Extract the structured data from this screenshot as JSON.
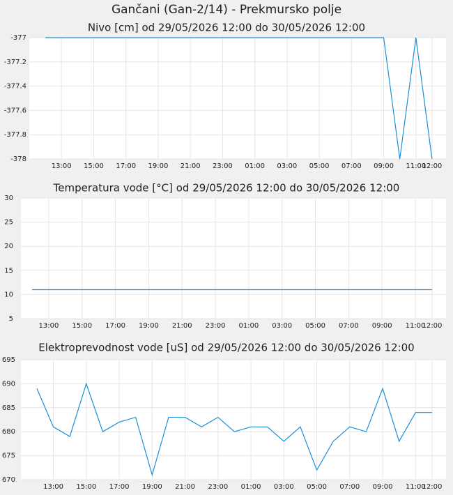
{
  "title": "Gančani (Gan-2/14) - Prekmursko polje",
  "chart_data": [
    {
      "type": "line",
      "title": "Nivo [cm] od 29/05/2026 12:00 do 30/05/2026 12:00",
      "color": "#1a8fd6",
      "grid": true,
      "x": [
        12,
        13,
        14,
        15,
        16,
        17,
        18,
        19,
        20,
        21,
        22,
        23,
        24,
        25,
        26,
        27,
        28,
        29,
        30,
        31,
        32,
        33,
        34,
        35,
        36
      ],
      "values": [
        -377,
        -377,
        -377,
        -377,
        -377,
        -377,
        -377,
        -377,
        -377,
        -377,
        -377,
        -377,
        -377,
        -377,
        -377,
        -377,
        -377,
        -377,
        -377,
        -377,
        -377,
        -377,
        -378,
        -377,
        -378
      ],
      "xlim": [
        11,
        36.87
      ],
      "ylim": [
        -378,
        -377
      ],
      "yticks": [
        -377,
        -377.2,
        -377.4,
        -377.6,
        -377.8,
        -378
      ],
      "xticks": [
        {
          "value": 13,
          "label": "13:00"
        },
        {
          "value": 15,
          "label": "15:00"
        },
        {
          "value": 17,
          "label": "17:00"
        },
        {
          "value": 19,
          "label": "19:00"
        },
        {
          "value": 21,
          "label": "21:00"
        },
        {
          "value": 23,
          "label": "23:00"
        },
        {
          "value": 25,
          "label": "01:00"
        },
        {
          "value": 27,
          "label": "03:00"
        },
        {
          "value": 29,
          "label": "05:00"
        },
        {
          "value": 31,
          "label": "07:00"
        },
        {
          "value": 33,
          "label": "09:00"
        },
        {
          "value": 35,
          "label": "11:00"
        },
        {
          "value": 36,
          "label": "12:00"
        }
      ]
    },
    {
      "type": "line",
      "title": "Temperatura vode [°C] od 29/05/2026 12:00 do 30/05/2026 12:00",
      "color": "#1a8fd6",
      "grid": true,
      "x": [
        12,
        13,
        14,
        15,
        16,
        17,
        18,
        19,
        20,
        21,
        22,
        23,
        24,
        25,
        26,
        27,
        28,
        29,
        30,
        31,
        32,
        33,
        34,
        35,
        36
      ],
      "values": [
        11,
        11,
        11,
        11,
        11,
        11,
        11,
        11,
        11,
        11,
        11,
        11,
        11,
        11,
        11,
        11,
        11,
        11,
        11,
        11,
        11,
        11,
        11,
        11,
        11
      ],
      "xlim": [
        11.33,
        36.84
      ],
      "ylim": [
        5,
        30
      ],
      "yticks": [
        30,
        25,
        20,
        15,
        10,
        5
      ],
      "xticks": [
        {
          "value": 13,
          "label": "13:00"
        },
        {
          "value": 15,
          "label": "15:00"
        },
        {
          "value": 17,
          "label": "17:00"
        },
        {
          "value": 19,
          "label": "19:00"
        },
        {
          "value": 21,
          "label": "21:00"
        },
        {
          "value": 23,
          "label": "23:00"
        },
        {
          "value": 25,
          "label": "01:00"
        },
        {
          "value": 27,
          "label": "03:00"
        },
        {
          "value": 29,
          "label": "05:00"
        },
        {
          "value": 31,
          "label": "07:00"
        },
        {
          "value": 33,
          "label": "09:00"
        },
        {
          "value": 35,
          "label": "11:00"
        },
        {
          "value": 36,
          "label": "12:00"
        }
      ]
    },
    {
      "type": "line",
      "title": "Elektroprevodnost vode [uS] od 29/05/2026 12:00 do 30/05/2026 12:00",
      "color": "#1a8fd6",
      "grid": true,
      "x": [
        12,
        13,
        14,
        15,
        16,
        17,
        18,
        19,
        20,
        21,
        22,
        23,
        24,
        25,
        26,
        27,
        28,
        29,
        30,
        31,
        32,
        33,
        34,
        35,
        36
      ],
      "values": [
        689,
        681,
        679,
        690,
        680,
        682,
        683,
        671,
        683,
        683,
        681,
        683,
        680,
        681,
        681,
        678,
        681,
        672,
        678,
        681,
        680,
        689,
        678,
        684,
        684
      ],
      "xlim": [
        11.03,
        36.85
      ],
      "ylim": [
        670,
        695
      ],
      "yticks": [
        695,
        690,
        685,
        680,
        675,
        670
      ],
      "xticks": [
        {
          "value": 13,
          "label": "13:00"
        },
        {
          "value": 15,
          "label": "15:00"
        },
        {
          "value": 17,
          "label": "17:00"
        },
        {
          "value": 19,
          "label": "19:00"
        },
        {
          "value": 21,
          "label": "21:00"
        },
        {
          "value": 23,
          "label": "23:00"
        },
        {
          "value": 25,
          "label": "01:00"
        },
        {
          "value": 27,
          "label": "03:00"
        },
        {
          "value": 29,
          "label": "05:00"
        },
        {
          "value": 31,
          "label": "07:00"
        },
        {
          "value": 33,
          "label": "09:00"
        },
        {
          "value": 35,
          "label": "11:00"
        },
        {
          "value": 36,
          "label": "12:00"
        }
      ]
    }
  ]
}
